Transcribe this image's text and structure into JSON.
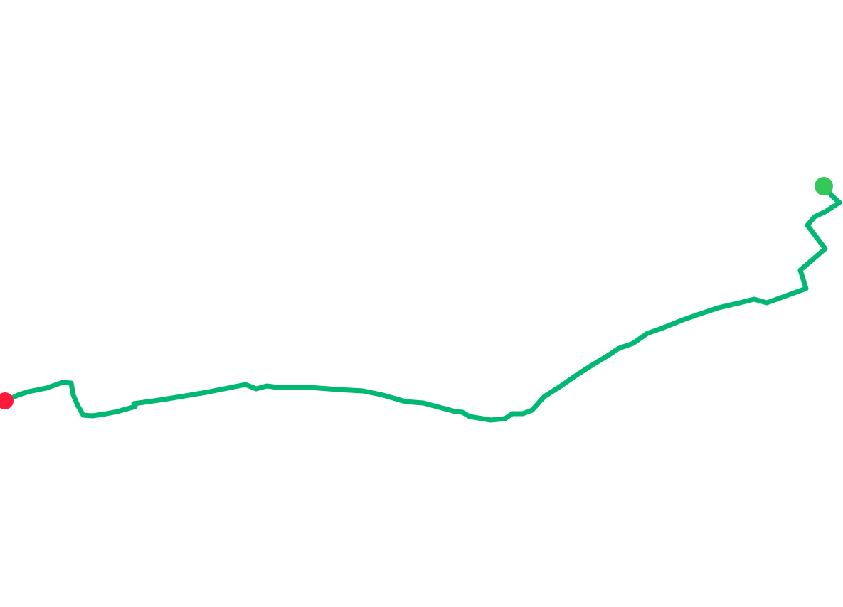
{
  "map": {
    "background_color": "#ffffff",
    "route": {
      "color": "#00b874"
    },
    "markers": {
      "start": {
        "icon": "start-marker-icon",
        "color": "#34c759"
      },
      "end": {
        "icon": "end-marker-icon",
        "color": "#ff1a3d"
      }
    }
  }
}
